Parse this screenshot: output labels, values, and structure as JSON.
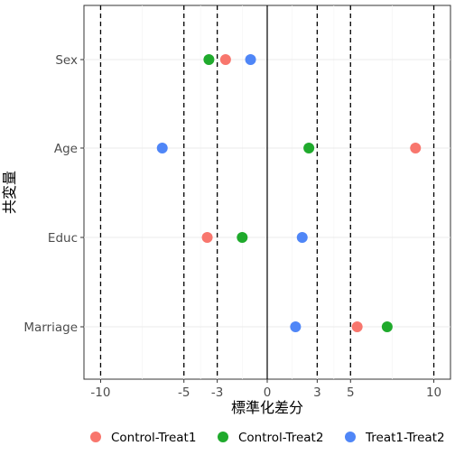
{
  "chart_data": {
    "type": "scatter",
    "title": "",
    "xlabel": "標準化差分",
    "ylabel": "共変量",
    "xlim": [
      -11,
      11
    ],
    "x_ticks": [
      -10,
      -5,
      -3,
      0,
      3,
      5,
      10
    ],
    "x_tick_labels": [
      "-10",
      "-5",
      "-3",
      "0",
      "3",
      "5",
      "10"
    ],
    "categories": [
      "Sex",
      "Age",
      "Educ",
      "Marriage"
    ],
    "reference_lines": {
      "solid": [
        0
      ],
      "dashed": [
        -10,
        -5,
        -3,
        3,
        5,
        10
      ]
    },
    "grid": true,
    "legend_position": "bottom",
    "series": [
      {
        "name": "Control-Treat1",
        "color": "#f8766d",
        "values": [
          -2.5,
          8.9,
          -3.6,
          5.4
        ]
      },
      {
        "name": "Control-Treat2",
        "color": "#1faa2c",
        "values": [
          -3.5,
          2.5,
          -1.5,
          7.2
        ]
      },
      {
        "name": "Treat1-Treat2",
        "color": "#4f86f7",
        "values": [
          -1.0,
          -6.3,
          2.1,
          1.7
        ]
      }
    ]
  }
}
